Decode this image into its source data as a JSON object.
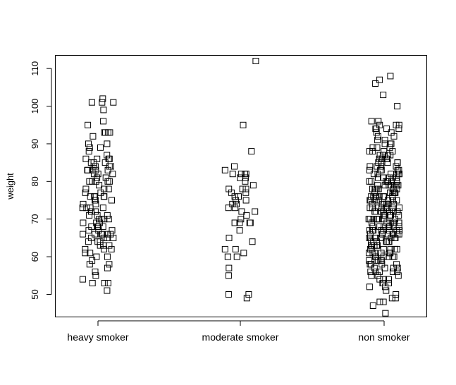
{
  "chart_data": {
    "type": "scatter",
    "title": "",
    "xlabel": "",
    "ylabel": "weight",
    "ylim": [
      44,
      113.5
    ],
    "yticks": [
      50,
      60,
      70,
      80,
      90,
      100,
      110
    ],
    "categories": [
      "heavy smoker",
      "moderate smoker",
      "non smoker"
    ],
    "marker": "open-square",
    "jitter": true,
    "grid": false,
    "legend": "none",
    "series": [
      {
        "category": "heavy smoker",
        "values": [
          102,
          101,
          101,
          101,
          99,
          96,
          95,
          93,
          93,
          93,
          93,
          92,
          90,
          90,
          89,
          89,
          88,
          87,
          86,
          86,
          86,
          86,
          85,
          85,
          85,
          84,
          84,
          84,
          84,
          83,
          83,
          83,
          83,
          83,
          82,
          82,
          82,
          81,
          81,
          80,
          80,
          80,
          80,
          80,
          79,
          78,
          78,
          78,
          77,
          77,
          76,
          76,
          76,
          76,
          76,
          75,
          75,
          75,
          74,
          74,
          73,
          73,
          73,
          73,
          72,
          72,
          72,
          71,
          71,
          71,
          70,
          70,
          70,
          70,
          69,
          69,
          69,
          68,
          68,
          68,
          68,
          67,
          67,
          67,
          66,
          66,
          66,
          66,
          66,
          66,
          66,
          65,
          65,
          65,
          65,
          64,
          64,
          64,
          63,
          63,
          63,
          62,
          62,
          62,
          61,
          61,
          60,
          60,
          59,
          58,
          58,
          57,
          56,
          55,
          54,
          53,
          53,
          53,
          51
        ]
      },
      {
        "category": "moderate smoker",
        "values": [
          112,
          95,
          88,
          84,
          83,
          82,
          82,
          82,
          82,
          81,
          81,
          80,
          79,
          78,
          78,
          78,
          77,
          77,
          76,
          76,
          75,
          75,
          74,
          74,
          73,
          73,
          72,
          72,
          71,
          70,
          69,
          69,
          69,
          69,
          67,
          65,
          64,
          62,
          62,
          61,
          60,
          60,
          57,
          55,
          50,
          50,
          49
        ]
      },
      {
        "category": "non smoker",
        "values": [
          108,
          107,
          106,
          103,
          100,
          96,
          96,
          95,
          95,
          95,
          94,
          94,
          94,
          94,
          93,
          93,
          92,
          92,
          91,
          91,
          90,
          90,
          90,
          89,
          89,
          89,
          88,
          88,
          88,
          88,
          87,
          87,
          87,
          87,
          86,
          86,
          86,
          86,
          86,
          85,
          85,
          85,
          85,
          85,
          84,
          84,
          84,
          84,
          84,
          83,
          83,
          83,
          83,
          83,
          82,
          82,
          82,
          82,
          82,
          82,
          81,
          81,
          81,
          81,
          81,
          81,
          80,
          80,
          80,
          80,
          80,
          80,
          80,
          79,
          79,
          79,
          79,
          79,
          79,
          79,
          78,
          78,
          78,
          78,
          78,
          78,
          78,
          77,
          77,
          77,
          77,
          77,
          77,
          77,
          76,
          76,
          76,
          76,
          76,
          76,
          76,
          76,
          75,
          75,
          75,
          75,
          75,
          75,
          75,
          75,
          74,
          74,
          74,
          74,
          74,
          74,
          74,
          74,
          73,
          73,
          73,
          73,
          73,
          73,
          73,
          73,
          72,
          72,
          72,
          72,
          72,
          72,
          72,
          72,
          71,
          71,
          71,
          71,
          71,
          71,
          71,
          71,
          70,
          70,
          70,
          70,
          70,
          70,
          70,
          70,
          69,
          69,
          69,
          69,
          69,
          69,
          69,
          69,
          68,
          68,
          68,
          68,
          68,
          68,
          68,
          68,
          67,
          67,
          67,
          67,
          67,
          67,
          67,
          67,
          66,
          66,
          66,
          66,
          66,
          66,
          66,
          66,
          65,
          65,
          65,
          65,
          65,
          65,
          65,
          65,
          64,
          64,
          64,
          64,
          64,
          64,
          64,
          63,
          63,
          63,
          63,
          63,
          63,
          63,
          62,
          62,
          62,
          62,
          62,
          62,
          61,
          61,
          61,
          61,
          61,
          61,
          60,
          60,
          60,
          60,
          60,
          60,
          59,
          59,
          59,
          59,
          59,
          58,
          58,
          58,
          58,
          58,
          57,
          57,
          57,
          57,
          56,
          56,
          56,
          56,
          56,
          55,
          55,
          55,
          54,
          54,
          54,
          53,
          53,
          53,
          52,
          52,
          51,
          50,
          49,
          49,
          48,
          48,
          47,
          45
        ]
      }
    ]
  }
}
